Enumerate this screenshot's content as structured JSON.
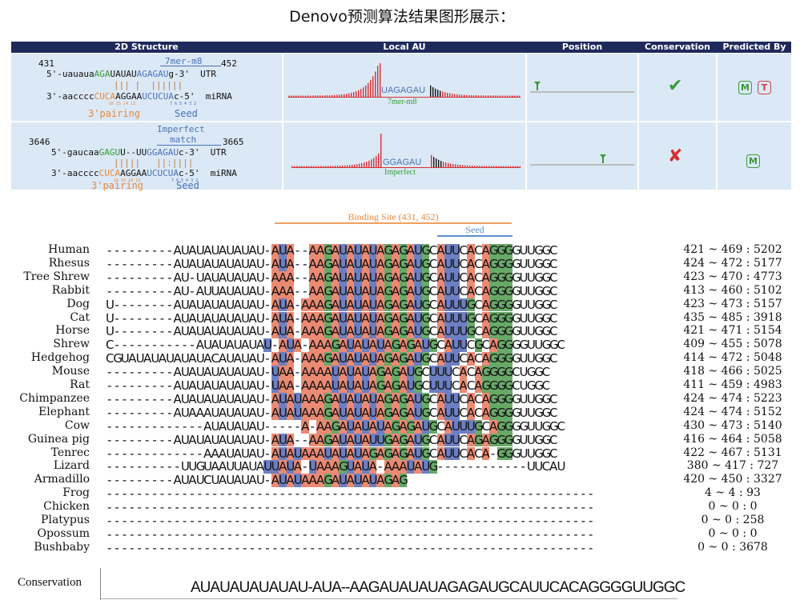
{
  "title": "Denovo预测算法结果图形展示：",
  "table": {
    "headers": [
      "2D Structure",
      "Local AU",
      "Position",
      "Conservation",
      "Predicted By"
    ],
    "rows": [
      {
        "start": "431",
        "end": "452",
        "site_type": "7mer-m8",
        "utr_prefix": "5'-uauaua",
        "utr_green": "AGA",
        "utr_mid": "UAUAU",
        "utr_blue": "AGAGAU",
        "utr_suffix": "g-3'",
        "utr_label": "UTR",
        "pairs": "||| |  ||||||",
        "mirna_prefix": "3'-aacccc",
        "mirna_orange": "CUCA",
        "mirna_mid": "AGGAA",
        "mirna_blue": "UCUCUA",
        "mirna_suffix": "c-5'",
        "mirna_label": "miRNA",
        "pairing_label": "3'pairing",
        "seed_label": "Seed",
        "pairing_nums": "16 15 14 13",
        "seed_nums": "7 6 5 4 3 2",
        "au_seq": "UAGAGAU",
        "au_label": "7mer-m8",
        "conservation": "✔",
        "conserved": true,
        "predicted_by": [
          "M",
          "T"
        ]
      },
      {
        "start": "3646",
        "end": "3665",
        "site_type": "Imperfect match",
        "site_type_line1": "Imperfect",
        "site_type_line2": "match",
        "utr_prefix": "5'-gaucaa",
        "utr_green": "GAGU",
        "utr_mid": "U--UU",
        "utr_blue": "GGAGAU",
        "utr_suffix": "c-3'",
        "utr_label": "UTR",
        "pairs": "|||||   ||:||||",
        "mirna_prefix": "3'-aacccc",
        "mirna_orange": "CUCA",
        "mirna_mid": "AGGAA",
        "mirna_blue": "UCUCUA",
        "mirna_suffix": "c-5'",
        "mirna_label": "miRNA",
        "pairing_label": "3'pairing",
        "seed_label": "Seed",
        "pairing_nums": "16 15 14 13",
        "seed_nums": "7 6 5 4 3 2",
        "au_seq": "GGAGAU",
        "au_label": "Imperfect",
        "conservation": "✘",
        "conserved": false,
        "predicted_by": [
          "M"
        ]
      }
    ]
  },
  "alignment": {
    "binding_site_label": "Binding Site (431, 452)",
    "seed_label": "Seed",
    "conservation_label": "Conservation",
    "conservation_logo": "AUAUAUAUAUAU-AUA--AAGAUAUAUAGAGAUGCAUUCACAGGGGUUGGC",
    "species": [
      {
        "name": "Human",
        "seq": "---------AUAUAUAUAUAU-AUA--AAGAUAUAUAGAGAUGCAUUCACAGGGGUUGGC",
        "pos": "421 ~ 469 : 5202"
      },
      {
        "name": "Rhesus",
        "seq": "---------AUAUAUAUAUAU-AUA--AAGAUAUAUAGAGAUGCAUUCACAGGGGUUGGC",
        "pos": "424 ~ 472 : 5177"
      },
      {
        "name": "Tree Shrew",
        "seq": "---------AU-UAUAUAUAU-AAA--AAGAUAUAUAGAGAUGCAUUCACAGGGGUUGGC",
        "pos": "423 ~ 470 : 4773"
      },
      {
        "name": "Rabbit",
        "seq": "---------AU-AUUAUAUAU-AAA--AAGAUAUAUAGAGAUGCAUUCACAGGGGUUGGC",
        "pos": "413 ~ 460 : 5102"
      },
      {
        "name": "Dog",
        "seq": "U--------AUAUAUAUAUAU-AUA-AAAGAUAUAUAGAGAUGCAUUUGCAGGGGUUGGC",
        "pos": "423 ~ 473 : 5157"
      },
      {
        "name": "Cat",
        "seq": "U--------AUAUAUAUAUAU-AUA-AAAGAUAUAUAGAGAUGCAUUUGCAGGGGUUGGC",
        "pos": "435 ~ 485 : 3918"
      },
      {
        "name": "Horse",
        "seq": "U--------AUAUAUAUAUAU-AUA-AAAGAUAUAUAGAGAUGCAUUUGCAGGGGUUGGC",
        "pos": "421 ~ 471 : 5154"
      },
      {
        "name": "Shrew",
        "seq": "C-----------AUAUAUAUAU-AUA-AAAGAUAUAUAGAGAUGCAUUCGCAGGGGUUGGC",
        "pos": "409 ~ 455 : 5078"
      },
      {
        "name": "Hedgehog",
        "seq": "CGUAUAUAUAUAUACAUAUAU-AUA-AAAGAUAUAUAGAGAUGCAUUCACAGGGGUUGGC",
        "pos": "414 ~ 472 : 5048"
      },
      {
        "name": "Mouse",
        "seq": "---------AUAUAUAUAUAU-UAA-AAAAUAUAUAGAGAUGCUUUCACAGGGGCUGGC",
        "pos": "418 ~ 466 : 5025"
      },
      {
        "name": "Rat",
        "seq": "---------AUAUAUAUAUAU-UAA-AAAAUAUAUAGAGAUGCUUUCACAGGGGCUGGC",
        "pos": "411 ~ 459 : 4983"
      },
      {
        "name": "Chimpanzee",
        "seq": "---------AUAUAUAUAUAU-AUAUAAAGAUAUAUAGAGAUGCAUUCACAGGGGUUGGC",
        "pos": "424 ~ 474 : 5223"
      },
      {
        "name": "Elephant",
        "seq": "---------AUAAAUAUAUAU-AUAUAAAGAUAUAUAGAGAUGCAUUCACAGGGGUUGGC",
        "pos": "424 ~ 474 : 5152"
      },
      {
        "name": "Cow",
        "seq": "-------------AUAUAUAU-----A-AAGAUAUAUAGAGAUGCAUUUGCAGGGGUUGGC",
        "pos": "430 ~ 473 : 5140"
      },
      {
        "name": "Guinea pig",
        "seq": "---------AUAUAUAUAUAU-AUA--AAGAUAUAUUGAGAUGCAUUCAGAGGGGUUGGC",
        "pos": "416 ~ 464 : 5058"
      },
      {
        "name": "Tenrec",
        "seq": "-------------AAAUAUAU-AUAUAAAUAUAUAGAGAGAUGCAUUCACA-GGGUUGGC",
        "pos": "422 ~ 467 : 5131"
      },
      {
        "name": "Lizard",
        "seq": "----------UUGUAAUUAUAUUAUA-UAAAGUAUA-AAAUAUG------------UUCAU",
        "pos": "380 ~ 417 : 727"
      },
      {
        "name": "Armadillo",
        "seq": "---------AUAUCUAUAUAU-AUAUAAAGAUAUAUAGAG",
        "pos": "420 ~ 450 : 3327"
      },
      {
        "name": "Frog",
        "seq": "-----------------------------------------------------------------",
        "pos": "4 ~ 4 : 93"
      },
      {
        "name": "Chicken",
        "seq": "-----------------------------------------------------------------",
        "pos": "0 ~ 0 : 0"
      },
      {
        "name": "Platypus",
        "seq": "-----------------------------------------------------------------",
        "pos": "0 ~ 0 : 258"
      },
      {
        "name": "Opossum",
        "seq": "-----------------------------------------------------------------",
        "pos": "0 ~ 0 : 0"
      },
      {
        "name": "Bushbaby",
        "seq": "-----------------------------------------------------------------",
        "pos": "0 ~ 0 : 3678"
      }
    ]
  },
  "colors": {
    "header_bg": "#1f2a5c",
    "cell_bg": "#dbe8f6",
    "A": "#e8755a",
    "U": "#5468b8",
    "G": "#4e9a4e",
    "binding_line": "#f0a060",
    "seed_line": "#5b8fd0",
    "badge_M": "#3a9a3a",
    "badge_T": "#d04040"
  }
}
